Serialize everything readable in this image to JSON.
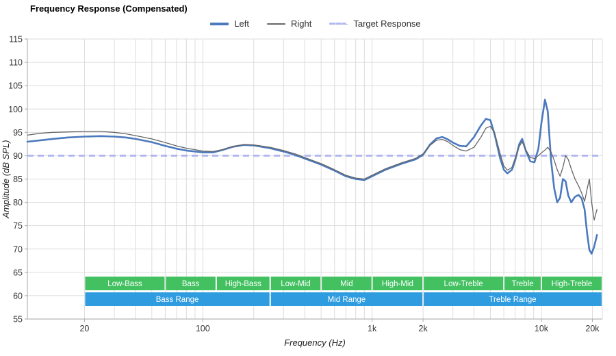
{
  "title": "Frequency Response (Compensated)",
  "legend": {
    "items": [
      {
        "label": "Left",
        "color": "#4b79bd",
        "style": "thick"
      },
      {
        "label": "Right",
        "color": "#666666",
        "style": "thin"
      },
      {
        "label": "Target Response",
        "color": "#b2b9f0",
        "style": "dashed"
      }
    ]
  },
  "chart_data": {
    "type": "line",
    "title": "Frequency Response (Compensated)",
    "xlabel": "Frequency (Hz)",
    "ylabel": "Amplitude (dB SPL)",
    "x_scale": "log",
    "xlim": [
      9.2,
      22900
    ],
    "ylim": [
      55,
      115
    ],
    "grid": true,
    "legend_position": "top-center",
    "y_ticks": [
      55,
      60,
      65,
      70,
      75,
      80,
      85,
      90,
      95,
      100,
      105,
      110,
      115
    ],
    "x_ticks": [
      {
        "f": 20,
        "label": "20"
      },
      {
        "f": 100,
        "label": "100"
      },
      {
        "f": 1000,
        "label": "1k"
      },
      {
        "f": 2000,
        "label": "2k"
      },
      {
        "f": 10000,
        "label": "10k"
      },
      {
        "f": 20000,
        "label": "20k"
      }
    ],
    "grid_frequencies": [
      20,
      30,
      40,
      50,
      60,
      70,
      80,
      90,
      100,
      200,
      300,
      400,
      500,
      600,
      700,
      800,
      900,
      1000,
      2000,
      3000,
      4000,
      5000,
      6000,
      7000,
      8000,
      9000,
      10000,
      20000
    ],
    "target_response_db": 90,
    "target_color": "#b2b9f0",
    "range_bands": {
      "sub_color": "#43c161",
      "main_color": "#2f9ce0",
      "sub_bands": [
        {
          "label": "Low-Bass",
          "from": 20,
          "to": 60
        },
        {
          "label": "Bass",
          "from": 60,
          "to": 120
        },
        {
          "label": "High-Bass",
          "from": 120,
          "to": 250
        },
        {
          "label": "Low-Mid",
          "from": 250,
          "to": 500
        },
        {
          "label": "Mid",
          "from": 500,
          "to": 1000
        },
        {
          "label": "High-Mid",
          "from": 1000,
          "to": 2000
        },
        {
          "label": "Low-Treble",
          "from": 2000,
          "to": 6000
        },
        {
          "label": "Treble",
          "from": 6000,
          "to": 10000
        },
        {
          "label": "High-Treble",
          "from": 10000,
          "to": 22900
        }
      ],
      "main_bands": [
        {
          "label": "Bass Range",
          "from": 20,
          "to": 250
        },
        {
          "label": "Mid Range",
          "from": 250,
          "to": 2000
        },
        {
          "label": "Treble Range",
          "from": 2000,
          "to": 22900
        }
      ]
    },
    "series": [
      {
        "name": "Left",
        "color": "#4b79bd",
        "width": 2.6,
        "points": [
          [
            9.2,
            93.0
          ],
          [
            11,
            93.3
          ],
          [
            13,
            93.6
          ],
          [
            16,
            93.9
          ],
          [
            20,
            94.1
          ],
          [
            25,
            94.2
          ],
          [
            30,
            94.1
          ],
          [
            35,
            93.9
          ],
          [
            40,
            93.6
          ],
          [
            50,
            92.9
          ],
          [
            60,
            92.1
          ],
          [
            70,
            91.5
          ],
          [
            80,
            91.1
          ],
          [
            90,
            90.9
          ],
          [
            100,
            90.7
          ],
          [
            115,
            90.7
          ],
          [
            130,
            91.2
          ],
          [
            150,
            91.9
          ],
          [
            175,
            92.3
          ],
          [
            200,
            92.2
          ],
          [
            250,
            91.6
          ],
          [
            300,
            90.9
          ],
          [
            350,
            90.2
          ],
          [
            400,
            89.4
          ],
          [
            500,
            88.1
          ],
          [
            600,
            86.8
          ],
          [
            700,
            85.6
          ],
          [
            800,
            85.0
          ],
          [
            900,
            84.8
          ],
          [
            1000,
            85.6
          ],
          [
            1200,
            87.0
          ],
          [
            1500,
            88.3
          ],
          [
            1800,
            89.2
          ],
          [
            2000,
            90.2
          ],
          [
            2200,
            92.4
          ],
          [
            2400,
            93.7
          ],
          [
            2600,
            94.0
          ],
          [
            2800,
            93.5
          ],
          [
            3000,
            92.8
          ],
          [
            3300,
            92.1
          ],
          [
            3600,
            92.0
          ],
          [
            4000,
            94.0
          ],
          [
            4400,
            96.5
          ],
          [
            4700,
            97.9
          ],
          [
            5000,
            97.6
          ],
          [
            5300,
            94.5
          ],
          [
            5700,
            89.5
          ],
          [
            6000,
            87.0
          ],
          [
            6300,
            86.2
          ],
          [
            6700,
            87.0
          ],
          [
            7000,
            89.0
          ],
          [
            7400,
            92.5
          ],
          [
            7700,
            93.6
          ],
          [
            8100,
            91.0
          ],
          [
            8600,
            88.8
          ],
          [
            9100,
            88.6
          ],
          [
            9600,
            91.5
          ],
          [
            10000,
            97.0
          ],
          [
            10500,
            102.0
          ],
          [
            10900,
            99.5
          ],
          [
            11400,
            89.0
          ],
          [
            11900,
            83.0
          ],
          [
            12400,
            80.0
          ],
          [
            12900,
            81.0
          ],
          [
            13400,
            85.0
          ],
          [
            13900,
            84.5
          ],
          [
            14400,
            81.5
          ],
          [
            15000,
            80.0
          ],
          [
            15800,
            81.2
          ],
          [
            16600,
            81.6
          ],
          [
            17300,
            80.8
          ],
          [
            18000,
            78.5
          ],
          [
            18600,
            73.5
          ],
          [
            19200,
            69.8
          ],
          [
            19800,
            69.0
          ],
          [
            20500,
            70.5
          ],
          [
            21300,
            73.0
          ]
        ]
      },
      {
        "name": "Right",
        "color": "#666666",
        "width": 1.3,
        "points": [
          [
            9.2,
            94.4
          ],
          [
            11,
            94.8
          ],
          [
            13,
            95.0
          ],
          [
            16,
            95.1
          ],
          [
            20,
            95.2
          ],
          [
            25,
            95.2
          ],
          [
            30,
            95.0
          ],
          [
            35,
            94.7
          ],
          [
            40,
            94.3
          ],
          [
            50,
            93.6
          ],
          [
            60,
            92.8
          ],
          [
            70,
            92.1
          ],
          [
            80,
            91.6
          ],
          [
            90,
            91.3
          ],
          [
            100,
            91.0
          ],
          [
            115,
            90.9
          ],
          [
            130,
            91.3
          ],
          [
            150,
            92.0
          ],
          [
            175,
            92.4
          ],
          [
            200,
            92.3
          ],
          [
            250,
            91.8
          ],
          [
            300,
            91.1
          ],
          [
            350,
            90.4
          ],
          [
            400,
            89.6
          ],
          [
            500,
            88.3
          ],
          [
            600,
            87.0
          ],
          [
            700,
            85.8
          ],
          [
            800,
            85.2
          ],
          [
            900,
            85.0
          ],
          [
            1000,
            85.8
          ],
          [
            1200,
            87.2
          ],
          [
            1500,
            88.5
          ],
          [
            1800,
            89.4
          ],
          [
            2000,
            90.4
          ],
          [
            2200,
            92.2
          ],
          [
            2400,
            93.3
          ],
          [
            2600,
            93.5
          ],
          [
            2800,
            93.0
          ],
          [
            3000,
            92.2
          ],
          [
            3300,
            91.3
          ],
          [
            3600,
            91.0
          ],
          [
            4000,
            91.8
          ],
          [
            4400,
            94.0
          ],
          [
            4700,
            95.9
          ],
          [
            5000,
            96.3
          ],
          [
            5300,
            94.8
          ],
          [
            5700,
            90.5
          ],
          [
            6000,
            87.8
          ],
          [
            6300,
            86.9
          ],
          [
            6700,
            87.5
          ],
          [
            7000,
            89.5
          ],
          [
            7400,
            92.0
          ],
          [
            7700,
            93.0
          ],
          [
            8100,
            91.2
          ],
          [
            8600,
            89.6
          ],
          [
            9100,
            89.4
          ],
          [
            9600,
            90.0
          ],
          [
            10000,
            90.6
          ],
          [
            10500,
            91.2
          ],
          [
            10900,
            91.8
          ],
          [
            11400,
            90.8
          ],
          [
            11900,
            89.0
          ],
          [
            12400,
            87.0
          ],
          [
            12900,
            85.6
          ],
          [
            13400,
            87.5
          ],
          [
            13900,
            90.0
          ],
          [
            14400,
            89.2
          ],
          [
            15000,
            87.2
          ],
          [
            15800,
            85.0
          ],
          [
            16600,
            83.5
          ],
          [
            17300,
            82.0
          ],
          [
            18000,
            80.2
          ],
          [
            18600,
            82.8
          ],
          [
            19200,
            85.0
          ],
          [
            19800,
            80.0
          ],
          [
            20500,
            76.2
          ],
          [
            21300,
            78.5
          ]
        ]
      }
    ]
  }
}
